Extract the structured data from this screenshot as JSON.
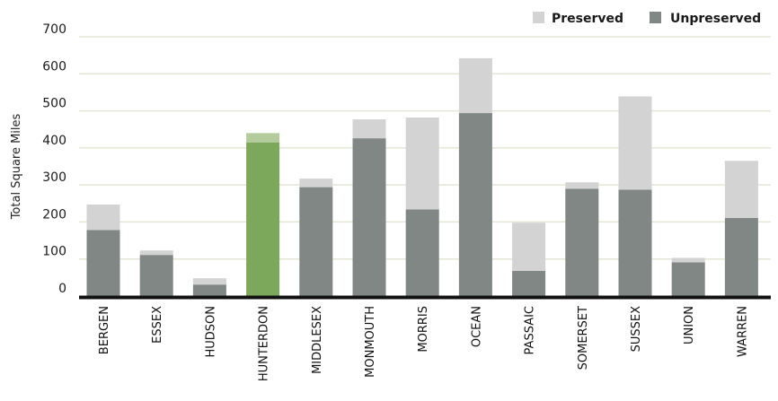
{
  "chart_data": {
    "type": "bar",
    "stacked": true,
    "ylabel": "Total Square Miles",
    "ylim": [
      0,
      700
    ],
    "yticks": [
      0,
      100,
      200,
      300,
      400,
      500,
      600,
      700
    ],
    "grid": true,
    "legend_position": "top-right",
    "categories": [
      "BERGEN",
      "ESSEX",
      "HUDSON",
      "HUNTERDON",
      "MIDDLESEX",
      "MONMOUTH",
      "MORRIS",
      "OCEAN",
      "PASSAIC",
      "SOMERSET",
      "SUSSEX",
      "UNION",
      "WARREN"
    ],
    "series": [
      {
        "name": "Unpreserved",
        "color": "#808785",
        "values": [
          178,
          111,
          31,
          415,
          294,
          426,
          234,
          494,
          68,
          290,
          287,
          91,
          211
        ]
      },
      {
        "name": "Preserved",
        "color": "#d3d3d3",
        "values": [
          69,
          12,
          17,
          25,
          23,
          51,
          248,
          148,
          130,
          17,
          252,
          12,
          154
        ]
      }
    ],
    "highlight": {
      "category": "HUNTERDON",
      "unpreserved_color": "#7ba85a",
      "preserved_color": "#b4cc9c"
    },
    "legend": [
      "Preserved",
      "Unpreserved"
    ]
  }
}
